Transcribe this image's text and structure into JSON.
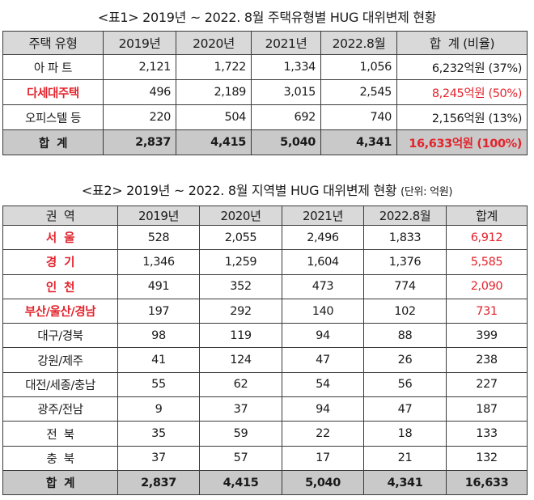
{
  "colors": {
    "highlight_red": "#e3232c",
    "header_gray": "#d9d9d9",
    "total_gray": "#c9c9c9"
  },
  "table1": {
    "title": "<표1> 2019년 ~ 2022. 8월 주택유형별 HUG 대위변제 현황",
    "headers": [
      "주택 유형",
      "2019년",
      "2020년",
      "2021년",
      "2022.8월",
      "합  계 (비율)"
    ],
    "rows": [
      {
        "label": "아 파 트",
        "values": [
          "2,121",
          "1,722",
          "1,334",
          "1,056"
        ],
        "total": "6,232억원 (37%)",
        "highlight": false
      },
      {
        "label": "다세대주택",
        "values": [
          "496",
          "2,189",
          "3,015",
          "2,545"
        ],
        "total": "8,245억원 (50%)",
        "highlight": true
      },
      {
        "label": "오피스텔 등",
        "values": [
          "220",
          "504",
          "692",
          "740"
        ],
        "total": "2,156억원 (13%)",
        "highlight": false
      }
    ],
    "total_row": {
      "label": "합  계",
      "values": [
        "2,837",
        "4,415",
        "5,040",
        "4,341"
      ],
      "total": "16,633억원 (100%)"
    }
  },
  "table2": {
    "title": "<표2> 2019년 ~ 2022. 8월 지역별 HUG 대위변제 현황 ",
    "unit": "(단위: 억원)",
    "headers": [
      "권  역",
      "2019년",
      "2020년",
      "2021년",
      "2022.8월",
      "합계"
    ],
    "rows": [
      {
        "label": "서  울",
        "values": [
          "528",
          "2,055",
          "2,496",
          "1,833"
        ],
        "total": "6,912",
        "highlight": true
      },
      {
        "label": "경  기",
        "values": [
          "1,346",
          "1,259",
          "1,604",
          "1,376"
        ],
        "total": "5,585",
        "highlight": true
      },
      {
        "label": "인  천",
        "values": [
          "491",
          "352",
          "473",
          "774"
        ],
        "total": "2,090",
        "highlight": true
      },
      {
        "label": "부산/울산/경남",
        "values": [
          "197",
          "292",
          "140",
          "102"
        ],
        "total": "731",
        "highlight": true
      },
      {
        "label": "대구/경북",
        "values": [
          "98",
          "119",
          "94",
          "88"
        ],
        "total": "399",
        "highlight": false
      },
      {
        "label": "강원/제주",
        "values": [
          "41",
          "124",
          "47",
          "26"
        ],
        "total": "238",
        "highlight": false
      },
      {
        "label": "대전/세종/충남",
        "values": [
          "55",
          "62",
          "54",
          "56"
        ],
        "total": "227",
        "highlight": false
      },
      {
        "label": "광주/전남",
        "values": [
          "9",
          "37",
          "94",
          "47"
        ],
        "total": "187",
        "highlight": false
      },
      {
        "label": "전  북",
        "values": [
          "35",
          "59",
          "22",
          "18"
        ],
        "total": "133",
        "highlight": false
      },
      {
        "label": "충  북",
        "values": [
          "37",
          "57",
          "17",
          "21"
        ],
        "total": "132",
        "highlight": false
      }
    ],
    "total_row": {
      "label": "합  계",
      "values": [
        "2,837",
        "4,415",
        "5,040",
        "4,341"
      ],
      "total": "16,633"
    }
  }
}
